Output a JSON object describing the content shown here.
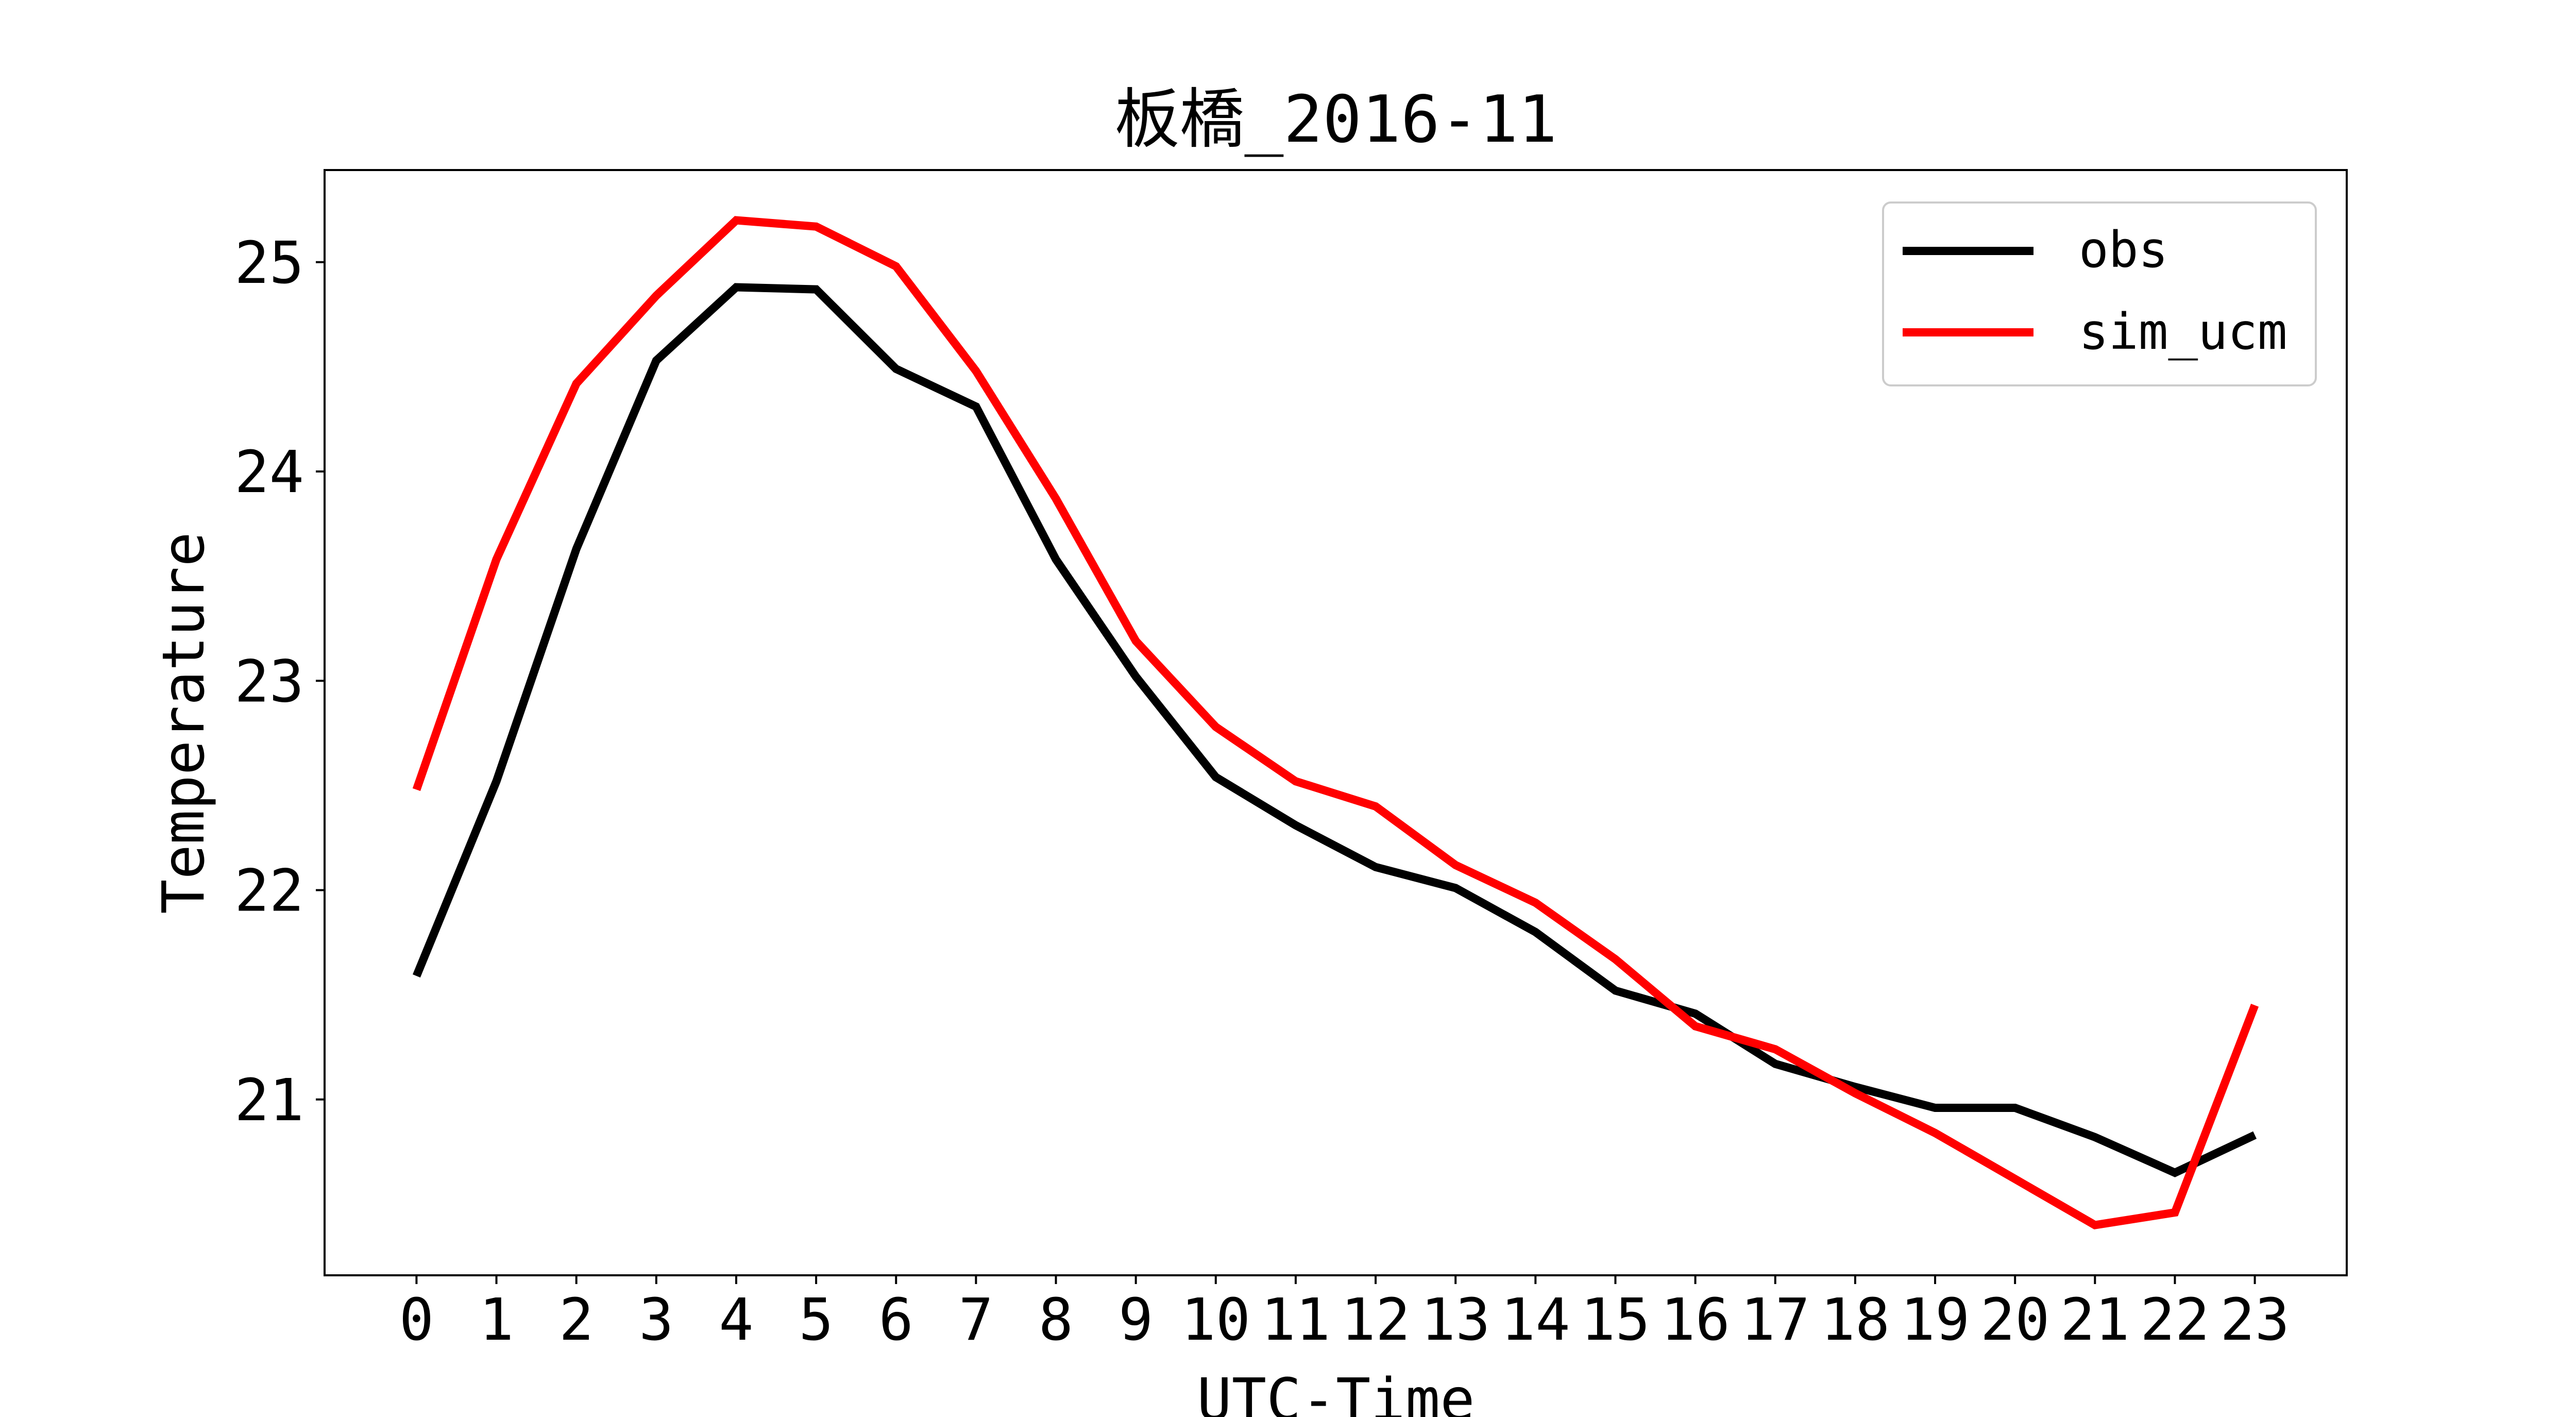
{
  "chart_data": {
    "type": "line",
    "title": "板橋_2016-11",
    "xlabel": "UTC-Time",
    "ylabel": "Temperature",
    "x": [
      0,
      1,
      2,
      3,
      4,
      5,
      6,
      7,
      8,
      9,
      10,
      11,
      12,
      13,
      14,
      15,
      16,
      17,
      18,
      19,
      20,
      21,
      22,
      23
    ],
    "x_tick_labels": [
      "0",
      "1",
      "2",
      "3",
      "4",
      "5",
      "6",
      "7",
      "8",
      "9",
      "10",
      "11",
      "12",
      "13",
      "14",
      "15",
      "16",
      "17",
      "18",
      "19",
      "20",
      "21",
      "22",
      "23"
    ],
    "y_ticks": [
      21,
      22,
      23,
      24,
      25
    ],
    "y_tick_labels": [
      "21",
      "22",
      "23",
      "24",
      "25"
    ],
    "xlim": [
      -1.15,
      24.15
    ],
    "ylim": [
      20.16,
      25.44
    ],
    "legend_position": "upper right",
    "series": [
      {
        "name": "obs",
        "color": "#000000",
        "values": [
          21.59,
          22.52,
          23.63,
          24.53,
          24.88,
          24.87,
          24.49,
          24.31,
          23.58,
          23.02,
          22.54,
          22.31,
          22.11,
          22.01,
          21.8,
          21.52,
          21.41,
          21.17,
          21.06,
          20.96,
          20.96,
          20.82,
          20.65,
          20.83
        ]
      },
      {
        "name": "sim_ucm",
        "color": "#ff0000",
        "values": [
          22.48,
          23.58,
          24.42,
          24.84,
          25.2,
          25.17,
          24.98,
          24.48,
          23.87,
          23.19,
          22.78,
          22.52,
          22.4,
          22.12,
          21.94,
          21.67,
          21.35,
          21.24,
          21.03,
          20.84,
          20.62,
          20.4,
          20.46,
          21.45
        ]
      }
    ]
  }
}
